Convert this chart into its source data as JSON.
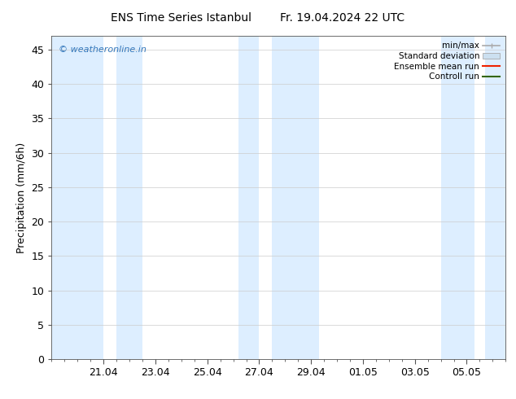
{
  "title_left": "ENS Time Series Istanbul",
  "title_right": "Fr. 19.04.2024 22 UTC",
  "ylabel": "Precipitation (mm/6h)",
  "ylim": [
    0,
    47
  ],
  "yticks": [
    0,
    5,
    10,
    15,
    20,
    25,
    30,
    35,
    40,
    45
  ],
  "background_color": "#ffffff",
  "plot_bg_color": "#ffffff",
  "watermark": "© weatheronline.in",
  "watermark_color": "#3377bb",
  "shaded_bands": [
    {
      "x_start": 0.0,
      "x_end": 2.0
    },
    {
      "x_start": 2.5,
      "x_end": 3.5
    },
    {
      "x_start": 7.2,
      "x_end": 8.0
    },
    {
      "x_start": 8.5,
      "x_end": 10.3
    },
    {
      "x_start": 15.0,
      "x_end": 16.3
    },
    {
      "x_start": 16.7,
      "x_end": 17.5
    }
  ],
  "band_color": "#ddeeff",
  "x_min": 0.0,
  "x_max": 17.5,
  "xtick_vals": [
    2,
    4,
    6,
    8,
    10,
    12,
    14,
    16
  ],
  "xtick_labels": [
    "21.04",
    "23.04",
    "25.04",
    "27.04",
    "29.04",
    "01.05",
    "03.05",
    "05.05"
  ],
  "legend_labels": [
    "min/max",
    "Standard deviation",
    "Ensemble mean run",
    "Controll run"
  ],
  "font_size": 9,
  "title_font_size": 10,
  "watermark_fontsize": 8
}
